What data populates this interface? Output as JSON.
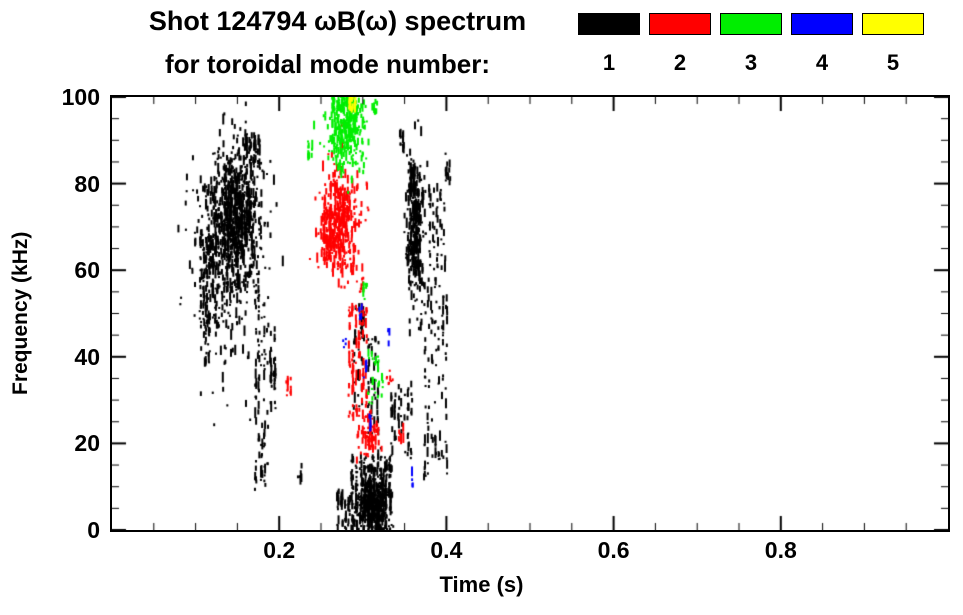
{
  "header": {
    "title_line1": "Shot 124794 ωB(ω) spectrum",
    "title_line2": "for toroidal mode number:"
  },
  "legend": {
    "items": [
      {
        "label": "1",
        "color": "#000000"
      },
      {
        "label": "2",
        "color": "#ff0000"
      },
      {
        "label": "3",
        "color": "#00ee00"
      },
      {
        "label": "4",
        "color": "#0000ff"
      },
      {
        "label": "5",
        "color": "#ffff00"
      }
    ]
  },
  "chart_data": {
    "type": "scatter",
    "title": "Shot 124794 ωB(ω) spectrum for toroidal mode number: 1 2 3 4 5",
    "xlabel": "Time (s)",
    "ylabel": "Frequency (kHz)",
    "xlim": [
      0,
      1
    ],
    "ylim": [
      0,
      100
    ],
    "grid": false,
    "legend_position": "top-right",
    "xticks": {
      "major": [
        0.2,
        0.4,
        0.6,
        0.8
      ],
      "major_labels": [
        "0.2",
        "0.4",
        "0.6",
        "0.8"
      ],
      "minor_step": 0.05
    },
    "yticks": {
      "major": [
        0,
        20,
        40,
        60,
        80,
        100
      ],
      "major_labels": [
        "0",
        "20",
        "40",
        "60",
        "80",
        "100"
      ],
      "minor_step": 5
    },
    "series": [
      {
        "name": "mode 1",
        "mode_number": 1,
        "color": "#000000",
        "clusters": [
          {
            "shape": "gauss",
            "ct": 0.148,
            "cf": 73,
            "st": 0.016,
            "sf": 8,
            "n": 700
          },
          {
            "shape": "gauss",
            "ct": 0.135,
            "cf": 63,
            "st": 0.02,
            "sf": 12,
            "n": 260
          },
          {
            "shape": "box",
            "t0": 0.104,
            "t1": 0.126,
            "f0": 45,
            "f1": 68,
            "n": 90,
            "cols": 6
          },
          {
            "shape": "box",
            "t0": 0.11,
            "t1": 0.118,
            "f0": 38,
            "f1": 50,
            "n": 25,
            "cols": 2
          },
          {
            "shape": "box",
            "t0": 0.158,
            "t1": 0.178,
            "f0": 83,
            "f1": 92,
            "n": 55,
            "cols": 4
          },
          {
            "shape": "box",
            "t0": 0.17,
            "t1": 0.188,
            "f0": 8,
            "f1": 58,
            "n": 90,
            "cols": 5
          },
          {
            "shape": "box",
            "t0": 0.188,
            "t1": 0.197,
            "f0": 28,
            "f1": 47,
            "n": 35,
            "cols": 2
          },
          {
            "shape": "box",
            "t0": 0.222,
            "t1": 0.228,
            "f0": 11,
            "f1": 15,
            "n": 8,
            "cols": 1
          },
          {
            "shape": "box",
            "t0": 0.288,
            "t1": 0.302,
            "f0": 28,
            "f1": 52,
            "n": 30,
            "cols": 3
          },
          {
            "shape": "box",
            "t0": 0.296,
            "t1": 0.302,
            "f0": 44,
            "f1": 50,
            "n": 15,
            "cols": 1
          },
          {
            "shape": "gauss",
            "ct": 0.313,
            "cf": 6,
            "st": 0.01,
            "sf": 4,
            "n": 420
          },
          {
            "shape": "box",
            "t0": 0.285,
            "t1": 0.335,
            "f0": 0,
            "f1": 17,
            "n": 200,
            "cols": 10
          },
          {
            "shape": "box",
            "t0": 0.268,
            "t1": 0.286,
            "f0": 0,
            "f1": 9,
            "n": 40,
            "cols": 4
          },
          {
            "shape": "box",
            "t0": 0.305,
            "t1": 0.32,
            "f0": 22,
            "f1": 45,
            "n": 40,
            "cols": 4
          },
          {
            "shape": "box",
            "t0": 0.333,
            "t1": 0.36,
            "f0": 16,
            "f1": 34,
            "n": 60,
            "cols": 7
          },
          {
            "shape": "gauss",
            "ct": 0.363,
            "cf": 69,
            "st": 0.005,
            "sf": 8,
            "n": 330
          },
          {
            "shape": "box",
            "t0": 0.356,
            "t1": 0.363,
            "f0": 78,
            "f1": 84,
            "n": 30,
            "cols": 2
          },
          {
            "shape": "box",
            "t0": 0.372,
            "t1": 0.402,
            "f0": 12,
            "f1": 58,
            "n": 110,
            "cols": 7
          },
          {
            "shape": "box",
            "t0": 0.378,
            "t1": 0.4,
            "f0": 60,
            "f1": 80,
            "n": 50,
            "cols": 5
          },
          {
            "shape": "box",
            "t0": 0.343,
            "t1": 0.35,
            "f0": 88,
            "f1": 92,
            "n": 12,
            "cols": 2
          },
          {
            "shape": "box",
            "t0": 0.398,
            "t1": 0.405,
            "f0": 80,
            "f1": 88,
            "n": 14,
            "cols": 1
          }
        ]
      },
      {
        "name": "mode 2",
        "mode_number": 2,
        "color": "#ff0000",
        "clusters": [
          {
            "shape": "gauss",
            "ct": 0.272,
            "cf": 71,
            "st": 0.012,
            "sf": 6,
            "n": 380
          },
          {
            "shape": "box",
            "t0": 0.252,
            "t1": 0.263,
            "f0": 62,
            "f1": 75,
            "n": 60,
            "cols": 3
          },
          {
            "shape": "box",
            "t0": 0.282,
            "t1": 0.306,
            "f0": 26,
            "f1": 52,
            "n": 100,
            "cols": 6
          },
          {
            "shape": "gauss",
            "ct": 0.308,
            "cf": 22,
            "st": 0.006,
            "sf": 2.5,
            "n": 70
          },
          {
            "shape": "box",
            "t0": 0.208,
            "t1": 0.214,
            "f0": 31,
            "f1": 35,
            "n": 10,
            "cols": 1
          },
          {
            "shape": "box",
            "t0": 0.328,
            "t1": 0.336,
            "f0": 33,
            "f1": 37,
            "n": 8,
            "cols": 1
          },
          {
            "shape": "box",
            "t0": 0.343,
            "t1": 0.349,
            "f0": 20,
            "f1": 24,
            "n": 8,
            "cols": 1
          },
          {
            "shape": "box",
            "t0": 0.296,
            "t1": 0.301,
            "f0": 55,
            "f1": 60,
            "n": 10,
            "cols": 1
          }
        ]
      },
      {
        "name": "mode 3",
        "mode_number": 3,
        "color": "#00ee00",
        "clusters": [
          {
            "shape": "gauss",
            "ct": 0.281,
            "cf": 93,
            "st": 0.011,
            "sf": 5,
            "n": 300
          },
          {
            "shape": "box",
            "t0": 0.262,
            "t1": 0.29,
            "f0": 97,
            "f1": 100,
            "n": 60,
            "cols": 5
          },
          {
            "shape": "box",
            "t0": 0.234,
            "t1": 0.24,
            "f0": 86,
            "f1": 90,
            "n": 10,
            "cols": 1
          },
          {
            "shape": "box",
            "t0": 0.305,
            "t1": 0.325,
            "f0": 29,
            "f1": 41,
            "n": 30,
            "cols": 5
          },
          {
            "shape": "box",
            "t0": 0.313,
            "t1": 0.318,
            "f0": 95,
            "f1": 99,
            "n": 10,
            "cols": 1
          },
          {
            "shape": "box",
            "t0": 0.3,
            "t1": 0.305,
            "f0": 53,
            "f1": 57,
            "n": 6,
            "cols": 1
          }
        ]
      },
      {
        "name": "mode 4",
        "mode_number": 4,
        "color": "#0000ff",
        "clusters": [
          {
            "shape": "box",
            "t0": 0.295,
            "t1": 0.299,
            "f0": 48,
            "f1": 52,
            "n": 5,
            "cols": 1
          },
          {
            "shape": "box",
            "t0": 0.301,
            "t1": 0.305,
            "f0": 35,
            "f1": 39,
            "n": 5,
            "cols": 1
          },
          {
            "shape": "box",
            "t0": 0.306,
            "t1": 0.31,
            "f0": 23,
            "f1": 27,
            "n": 5,
            "cols": 1
          },
          {
            "shape": "box",
            "t0": 0.329,
            "t1": 0.333,
            "f0": 43,
            "f1": 47,
            "n": 4,
            "cols": 1
          },
          {
            "shape": "box",
            "t0": 0.357,
            "t1": 0.361,
            "f0": 10,
            "f1": 14,
            "n": 4,
            "cols": 1
          },
          {
            "shape": "box",
            "t0": 0.276,
            "t1": 0.28,
            "f0": 42,
            "f1": 45,
            "n": 4,
            "cols": 1
          }
        ]
      },
      {
        "name": "mode 5",
        "mode_number": 5,
        "color": "#ffff00",
        "clusters": [
          {
            "shape": "box",
            "t0": 0.283,
            "t1": 0.292,
            "f0": 97,
            "f1": 100,
            "n": 25,
            "cols": 3
          }
        ]
      }
    ]
  }
}
